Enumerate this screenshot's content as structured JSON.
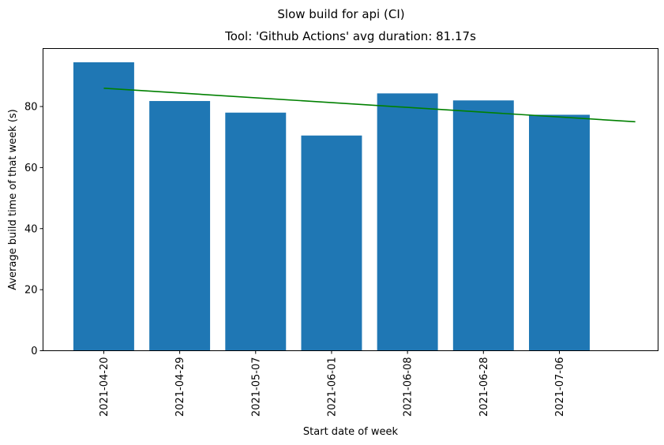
{
  "chart_data": {
    "type": "bar",
    "suptitle": "Slow build for api (CI)",
    "title": "Tool: 'Github Actions' avg duration: 81.17s",
    "xlabel": "Start date of week",
    "ylabel": "Average build time of that week (s)",
    "categories": [
      "2021-04-20",
      "2021-04-29",
      "2021-05-07",
      "2021-06-01",
      "2021-06-08",
      "2021-06-28",
      "2021-07-06"
    ],
    "values": [
      94.5,
      81.8,
      78.0,
      70.5,
      84.3,
      82.0,
      77.3
    ],
    "bar_color": "#1f77b4",
    "trend_line": {
      "color": "#008000",
      "x": [
        0,
        7
      ],
      "y": [
        86.0,
        75.0
      ]
    },
    "yticks": [
      0,
      20,
      40,
      60,
      80
    ],
    "ylim": [
      0,
      99
    ],
    "xlim": [
      -0.8,
      7.3
    ],
    "grid": false,
    "legend": "none"
  }
}
